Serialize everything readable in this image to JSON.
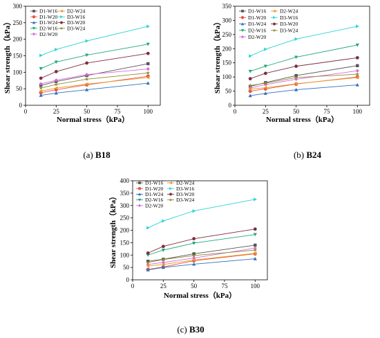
{
  "chart_data": [
    {
      "type": "line",
      "caption_letter": "(a)",
      "caption_name": "B18",
      "xlabel": "Normal stress（kPa）",
      "ylabel": "Shear strength（kPa）",
      "xlim": [
        0,
        110
      ],
      "ylim": [
        0,
        300
      ],
      "xticks": [
        0,
        25,
        50,
        75,
        100
      ],
      "yticks": [
        0,
        50,
        100,
        150,
        200,
        250,
        300
      ],
      "x": [
        12.5,
        25,
        50,
        100
      ],
      "legend_placement": "top-left",
      "series": [
        {
          "name": "D1-W16",
          "color": "#555555",
          "marker": "square",
          "values": [
            60,
            72,
            90,
            126
          ]
        },
        {
          "name": "D1-W20",
          "color": "#e8563f",
          "marker": "circle",
          "values": [
            38,
            47,
            62,
            88
          ]
        },
        {
          "name": "D1-W24",
          "color": "#2f6fbd",
          "marker": "triangle-up",
          "values": [
            30,
            37,
            47,
            67
          ]
        },
        {
          "name": "D2-W16",
          "color": "#1fa97b",
          "marker": "triangle-down",
          "values": [
            111,
            131,
            152,
            185
          ]
        },
        {
          "name": "D2-W20",
          "color": "#d86ad8",
          "marker": "diamond",
          "values": [
            65,
            76,
            93,
            110
          ]
        },
        {
          "name": "D2-W24",
          "color": "#e8962a",
          "marker": "triangle-left",
          "values": [
            43,
            52,
            64,
            84
          ]
        },
        {
          "name": "D3-W16",
          "color": "#2bd3d3",
          "marker": "triangle-right",
          "values": [
            151,
            169,
            195,
            239
          ]
        },
        {
          "name": "D3-W20",
          "color": "#7b2d3b",
          "marker": "hexagon",
          "values": [
            82,
            102,
            128,
            157
          ]
        },
        {
          "name": "D3-W24",
          "color": "#8f8a2d",
          "marker": "star",
          "values": [
            52,
            63,
            79,
            98
          ]
        }
      ]
    },
    {
      "type": "line",
      "caption_letter": "(b)",
      "caption_name": "B24",
      "xlabel": "Normal stress（kPa）",
      "ylabel": "Shear strength（kPa）",
      "xlim": [
        0,
        110
      ],
      "ylim": [
        0,
        350
      ],
      "xticks": [
        0,
        25,
        50,
        75,
        100
      ],
      "yticks": [
        0,
        50,
        100,
        150,
        200,
        250,
        300,
        350
      ],
      "x": [
        12.5,
        25,
        50,
        100
      ],
      "legend_placement": "top-left",
      "series": [
        {
          "name": "D1-W16",
          "color": "#555555",
          "marker": "square",
          "values": [
            67,
            80,
            105,
            140
          ]
        },
        {
          "name": "D1-W20",
          "color": "#e8563f",
          "marker": "circle",
          "values": [
            50,
            58,
            75,
            100
          ]
        },
        {
          "name": "D1-W24",
          "color": "#2f6fbd",
          "marker": "triangle-up",
          "values": [
            34,
            42,
            55,
            72
          ]
        },
        {
          "name": "D2-W16",
          "color": "#1fa97b",
          "marker": "triangle-down",
          "values": [
            120,
            138,
            170,
            213
          ]
        },
        {
          "name": "D2-W20",
          "color": "#d86ad8",
          "marker": "diamond",
          "values": [
            61,
            73,
            92,
            122
          ]
        },
        {
          "name": "D2-W24",
          "color": "#e8962a",
          "marker": "triangle-left",
          "values": [
            57,
            62,
            76,
            98
          ]
        },
        {
          "name": "D3-W16",
          "color": "#2bd3d3",
          "marker": "triangle-right",
          "values": [
            174,
            198,
            234,
            279
          ]
        },
        {
          "name": "D3-W20",
          "color": "#7b2d3b",
          "marker": "hexagon",
          "values": [
            94,
            113,
            138,
            168
          ]
        },
        {
          "name": "D3-W24",
          "color": "#8f8a2d",
          "marker": "star",
          "values": [
            70,
            78,
            98,
            110
          ]
        }
      ]
    },
    {
      "type": "line",
      "caption_letter": "(c)",
      "caption_name": "B30",
      "xlabel": "Normal stress（kPa）",
      "ylabel": "Shear strength（kPa）",
      "xlim": [
        0,
        110
      ],
      "ylim": [
        0,
        400
      ],
      "xticks": [
        0,
        25,
        50,
        75,
        100
      ],
      "yticks": [
        0,
        50,
        100,
        150,
        200,
        250,
        300,
        350,
        400
      ],
      "x": [
        12.5,
        25,
        50,
        100
      ],
      "legend_placement": "top-left",
      "series": [
        {
          "name": "D1-W16",
          "color": "#555555",
          "marker": "square",
          "values": [
            75,
            83,
            105,
            140
          ]
        },
        {
          "name": "D1-W20",
          "color": "#e8563f",
          "marker": "circle",
          "values": [
            42,
            52,
            77,
            105
          ]
        },
        {
          "name": "D1-W24",
          "color": "#2f6fbd",
          "marker": "triangle-up",
          "values": [
            40,
            50,
            63,
            85
          ]
        },
        {
          "name": "D2-W16",
          "color": "#1fa97b",
          "marker": "triangle-down",
          "values": [
            100,
            120,
            148,
            183
          ]
        },
        {
          "name": "D2-W20",
          "color": "#d86ad8",
          "marker": "diamond",
          "values": [
            62,
            70,
            88,
            128
          ]
        },
        {
          "name": "D2-W24",
          "color": "#e8962a",
          "marker": "triangle-left",
          "values": [
            56,
            62,
            80,
            107
          ]
        },
        {
          "name": "D3-W16",
          "color": "#2bd3d3",
          "marker": "triangle-right",
          "values": [
            210,
            238,
            278,
            325
          ]
        },
        {
          "name": "D3-W20",
          "color": "#7b2d3b",
          "marker": "hexagon",
          "values": [
            108,
            135,
            166,
            205
          ]
        },
        {
          "name": "D3-W24",
          "color": "#8f8a2d",
          "marker": "star",
          "values": [
            70,
            82,
            98,
            120
          ]
        }
      ]
    }
  ]
}
